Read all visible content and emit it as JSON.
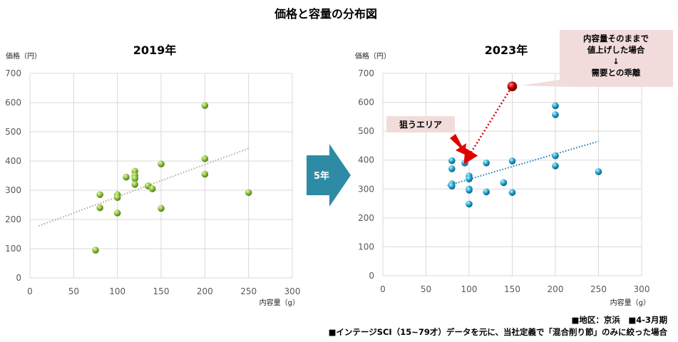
{
  "title": "価格と容量の分布図",
  "arrow_label": "5年",
  "annotation_main": [
    "内容量そのままで",
    "値上げした場合",
    "↓",
    "需要との乖離"
  ],
  "annotation_target": "狙うエリア",
  "footnote_region": "■地区：京浜　■4-3月期",
  "footnote_source": "■インテージSCI（15~79才）データを元に、当社定義で「混合削り節」のみに絞った場合",
  "colors": {
    "green_point": "#8cbf3f",
    "blue_point": "#1ea3cc",
    "red_point": "#c00000",
    "arrow": "#2e8ba6",
    "callout_bg": "#f2dcdb",
    "grid": "#d9d9d9"
  },
  "chart_data": [
    {
      "type": "scatter",
      "title": "2019年",
      "xlabel": "内容量（g）",
      "ylabel": "価格（円）",
      "xlim": [
        0,
        300
      ],
      "ylim": [
        0,
        700
      ],
      "xticks": [
        0,
        50,
        100,
        150,
        200,
        250,
        300
      ],
      "yticks": [
        0,
        100,
        200,
        300,
        400,
        500,
        600,
        700
      ],
      "grid": true,
      "series": [
        {
          "name": "2019",
          "points": [
            [
              75,
              95
            ],
            [
              80,
              285
            ],
            [
              80,
              240
            ],
            [
              100,
              285
            ],
            [
              100,
              275
            ],
            [
              100,
              222
            ],
            [
              110,
              345
            ],
            [
              120,
              365
            ],
            [
              120,
              350
            ],
            [
              120,
              340
            ],
            [
              120,
              320
            ],
            [
              135,
              315
            ],
            [
              140,
              305
            ],
            [
              150,
              390
            ],
            [
              150,
              238
            ],
            [
              200,
              590
            ],
            [
              200,
              408
            ],
            [
              200,
              355
            ],
            [
              250,
              292
            ]
          ]
        }
      ],
      "trendline": [
        [
          10,
          178
        ],
        [
          250,
          443
        ]
      ]
    },
    {
      "type": "scatter",
      "title": "2023年",
      "xlabel": "内容量（g）",
      "ylabel": "価格（円）",
      "xlim": [
        0,
        300
      ],
      "ylim": [
        0,
        700
      ],
      "xticks": [
        0,
        50,
        100,
        150,
        200,
        250,
        300
      ],
      "yticks": [
        0,
        100,
        200,
        300,
        400,
        500,
        600,
        700
      ],
      "grid": true,
      "series": [
        {
          "name": "2023",
          "points": [
            [
              80,
              398
            ],
            [
              80,
              370
            ],
            [
              80,
              318
            ],
            [
              80,
              310
            ],
            [
              95,
              390
            ],
            [
              100,
              345
            ],
            [
              100,
              335
            ],
            [
              100,
              300
            ],
            [
              100,
              296
            ],
            [
              100,
              248
            ],
            [
              120,
              390
            ],
            [
              120,
              290
            ],
            [
              140,
              322
            ],
            [
              150,
              397
            ],
            [
              150,
              288
            ],
            [
              200,
              588
            ],
            [
              200,
              557
            ],
            [
              200,
              415
            ],
            [
              200,
              380
            ],
            [
              250,
              360
            ]
          ]
        },
        {
          "name": "highlight",
          "points": [
            [
              150,
              655
            ]
          ]
        }
      ],
      "trendline": [
        [
          75,
          312
        ],
        [
          250,
          465
        ]
      ]
    }
  ]
}
